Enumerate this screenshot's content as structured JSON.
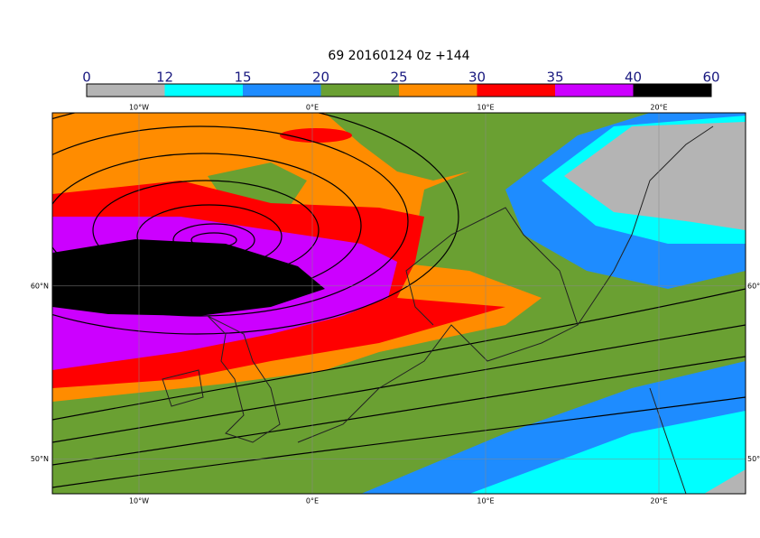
{
  "title": "69 20160124 0z +144",
  "colorbar": {
    "ticks": [
      0,
      12,
      15,
      20,
      25,
      30,
      35,
      40,
      60
    ],
    "colors": [
      "#b4b4b4",
      "#00ffff",
      "#1e8cff",
      "#6aa032",
      "#ff8c00",
      "#ff0000",
      "#cc00ff",
      "#000000"
    ]
  },
  "map": {
    "lonlim": [
      -15,
      25
    ],
    "latlim": [
      48,
      70
    ],
    "lon_ticks": [
      {
        "value": -10,
        "label": "10°W"
      },
      {
        "value": 0,
        "label": "0°E"
      },
      {
        "value": 10,
        "label": "10°E"
      },
      {
        "value": 20,
        "label": "20°E"
      }
    ],
    "lat_ticks": [
      {
        "value": 60,
        "label": "60°N"
      },
      {
        "value": 50,
        "label": "50°N"
      }
    ]
  }
}
